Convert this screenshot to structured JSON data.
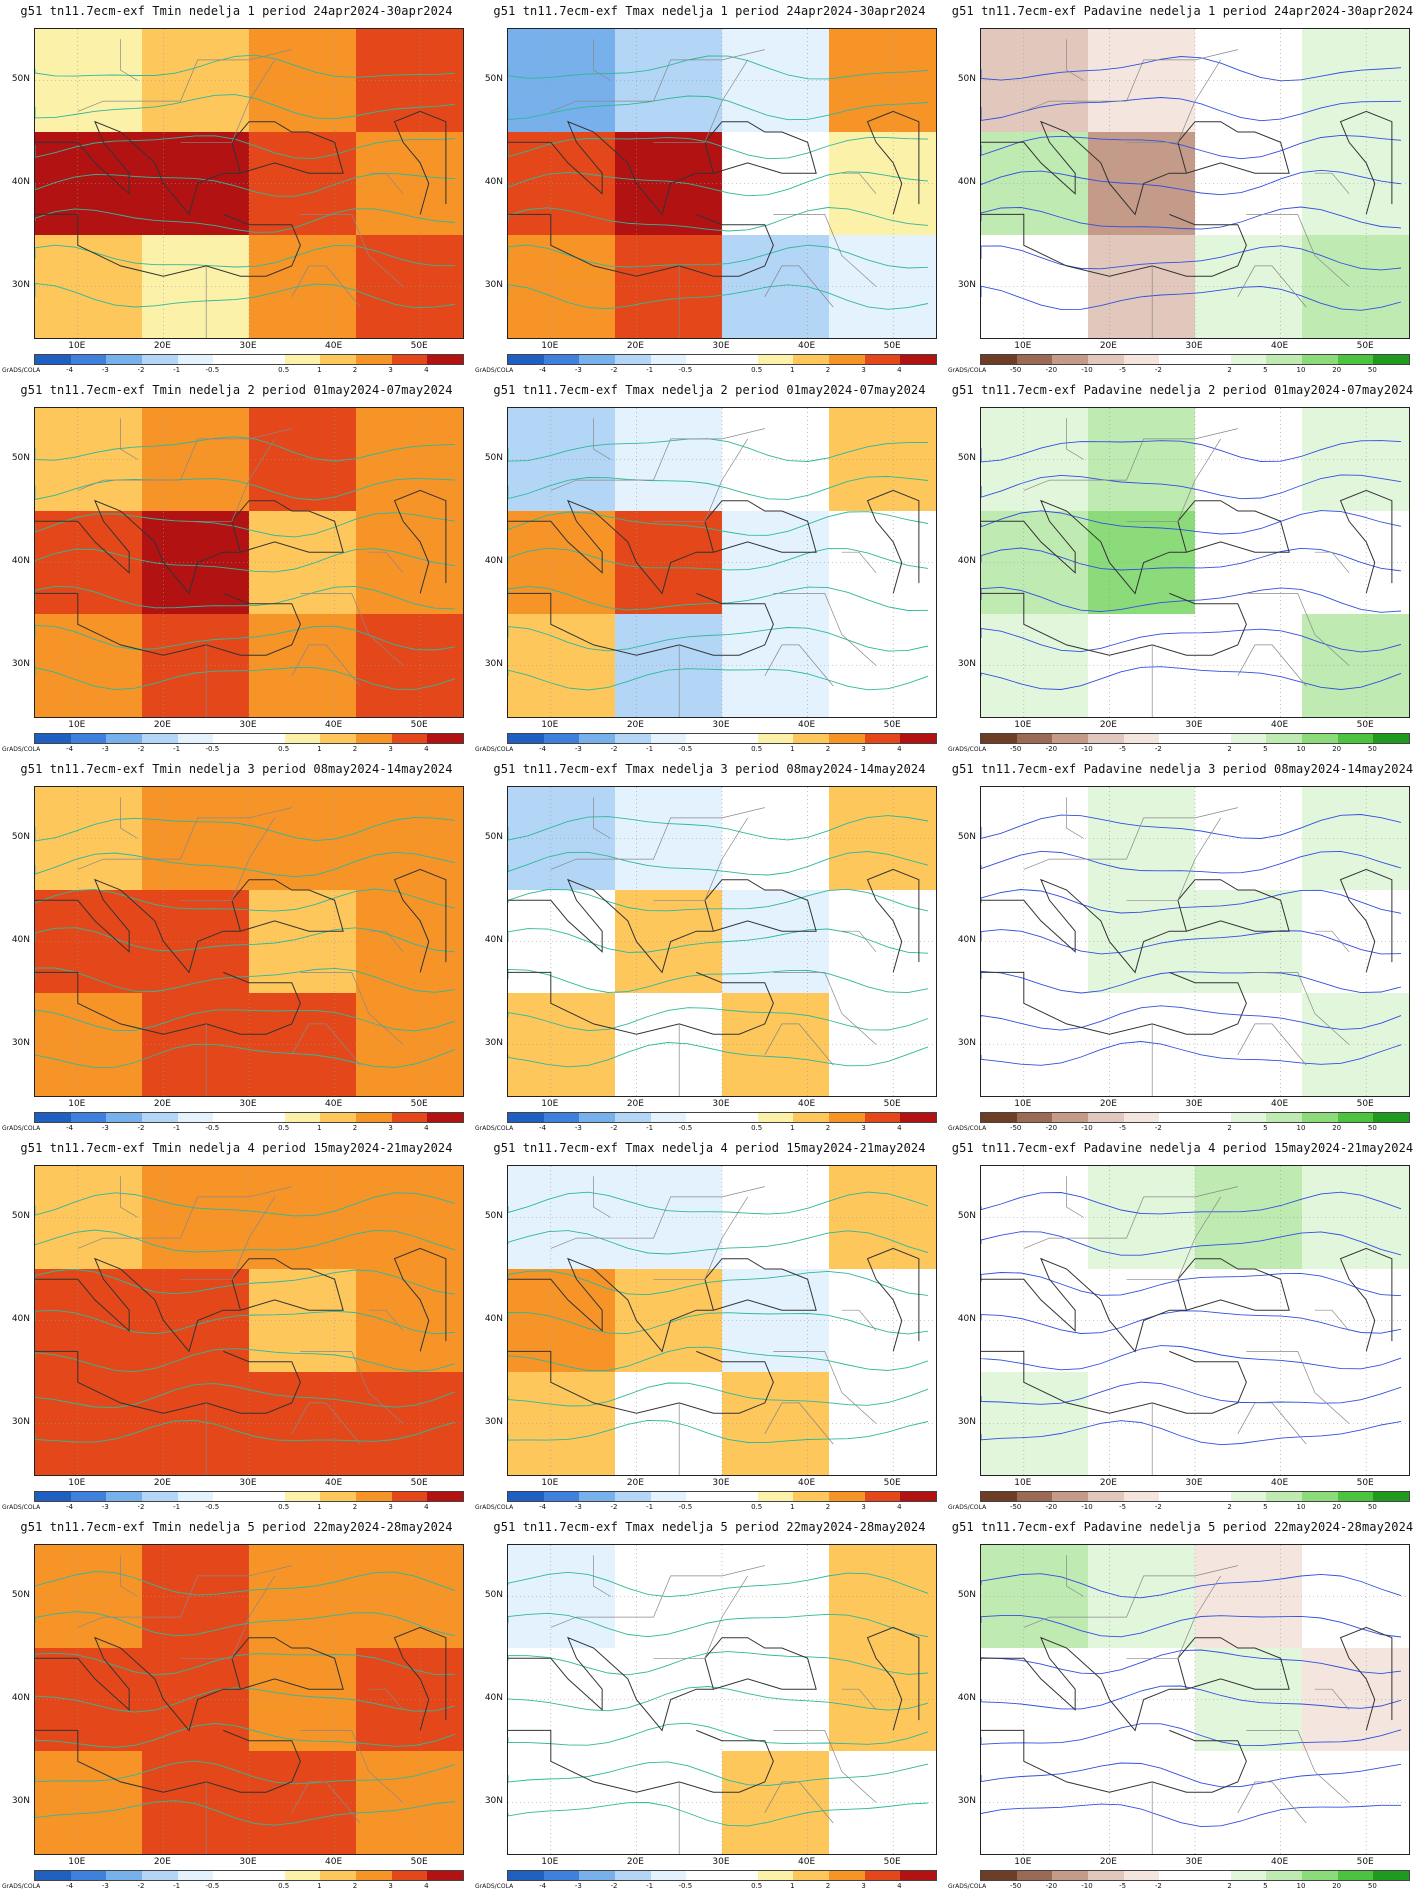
{
  "grads_label": "GrADS/COLA",
  "axis": {
    "y_ticks": [
      "50N",
      "40N",
      "30N"
    ],
    "x_ticks": [
      "10E",
      "20E",
      "30E",
      "40E",
      "50E"
    ]
  },
  "colorbars": {
    "temperature": {
      "colors": [
        "#1f5fbf",
        "#3f80dc",
        "#78b0ec",
        "#b3d6f6",
        "#e4f2fd",
        "#ffffff",
        "#ffffff",
        "#fcf1a8",
        "#fdc75c",
        "#f79428",
        "#e4481a",
        "#b31212"
      ],
      "ticks": [
        "-4",
        "-3",
        "-2",
        "-1",
        "-0.5",
        "0.5",
        "1",
        "2",
        "3",
        "4"
      ]
    },
    "precipitation": {
      "colors": [
        "#6e3d26",
        "#9a6a55",
        "#c49a88",
        "#e2c8bc",
        "#f4e6de",
        "#ffffff",
        "#ffffff",
        "#e2f6dc",
        "#bfeab2",
        "#8cdb7a",
        "#4cc33e",
        "#1f9a1f"
      ],
      "ticks": [
        "-50",
        "-20",
        "-10",
        "-5",
        "-2",
        "2",
        "5",
        "10",
        "20",
        "50"
      ]
    }
  },
  "panels": [
    {
      "title": "g51 tn11.7ecm-exf Tmin nedelja 1 period 24apr2024-30apr2024",
      "variable": "Tmin",
      "scheme": "temperature",
      "anomaly_levels": [
        0.5,
        1,
        2,
        3,
        4,
        4,
        3,
        2,
        1,
        0.5,
        2,
        3
      ]
    },
    {
      "title": "g51 tn11.7ecm-exf Tmax nedelja 1 period 24apr2024-30apr2024",
      "variable": "Tmax",
      "scheme": "temperature",
      "anomaly_levels": [
        -3,
        -2,
        -1,
        2,
        3,
        4,
        -0.5,
        0.5,
        2,
        3,
        -2,
        -1
      ]
    },
    {
      "title": "g51 tn11.7ecm-exf Padavine nedelja 1 period 24apr2024-30apr2024",
      "variable": "Padavine",
      "scheme": "precipitation",
      "anomaly_levels": [
        -10,
        -5,
        0,
        2,
        5,
        -20,
        0,
        2,
        0,
        -10,
        2,
        5
      ]
    },
    {
      "title": "g51 tn11.7ecm-exf Tmin nedelja 2 period 01may2024-07may2024",
      "variable": "Tmin",
      "scheme": "temperature",
      "anomaly_levels": [
        1,
        2,
        3,
        2,
        3,
        4,
        1,
        2,
        2,
        3,
        2,
        3
      ]
    },
    {
      "title": "g51 tn11.7ecm-exf Tmax nedelja 2 period 01may2024-07may2024",
      "variable": "Tmax",
      "scheme": "temperature",
      "anomaly_levels": [
        -2,
        -1,
        -0.5,
        1,
        2,
        3,
        -1,
        0,
        1,
        -2,
        -1,
        0
      ]
    },
    {
      "title": "g51 tn11.7ecm-exf Padavine nedelja 2 period 01may2024-07may2024",
      "variable": "Padavine",
      "scheme": "precipitation",
      "anomaly_levels": [
        2,
        5,
        0,
        2,
        5,
        10,
        0,
        0,
        2,
        0,
        0,
        5
      ]
    },
    {
      "title": "g51 tn11.7ecm-exf Tmin nedelja 3 period 08may2024-14may2024",
      "variable": "Tmin",
      "scheme": "temperature",
      "anomaly_levels": [
        1,
        2,
        2,
        2,
        3,
        3,
        1,
        2,
        2,
        3,
        3,
        2
      ]
    },
    {
      "title": "g51 tn11.7ecm-exf Tmax nedelja 3 period 08may2024-14may2024",
      "variable": "Tmax",
      "scheme": "temperature",
      "anomaly_levels": [
        -2,
        -1,
        0,
        1,
        0,
        1,
        -1,
        0,
        1,
        0,
        1,
        0
      ]
    },
    {
      "title": "g51 tn11.7ecm-exf Padavine nedelja 3 period 08may2024-14may2024",
      "variable": "Padavine",
      "scheme": "precipitation",
      "anomaly_levels": [
        0,
        2,
        0,
        2,
        0,
        2,
        2,
        -2,
        0,
        0,
        0,
        2
      ]
    },
    {
      "title": "g51 tn11.7ecm-exf Tmin nedelja 4 period 15may2024-21may2024",
      "variable": "Tmin",
      "scheme": "temperature",
      "anomaly_levels": [
        1,
        2,
        2,
        2,
        3,
        3,
        1,
        2,
        3,
        3,
        3,
        3
      ]
    },
    {
      "title": "g51 tn11.7ecm-exf Tmax nedelja 4 period 15may2024-21may2024",
      "variable": "Tmax",
      "scheme": "temperature",
      "anomaly_levels": [
        -1,
        -1,
        0,
        1,
        2,
        1,
        -1,
        0,
        1,
        -0.5,
        1,
        0
      ]
    },
    {
      "title": "g51 tn11.7ecm-exf Padavine nedelja 4 period 15may2024-21may2024",
      "variable": "Padavine",
      "scheme": "precipitation",
      "anomaly_levels": [
        0,
        2,
        5,
        2,
        0,
        -2,
        -2,
        0,
        2,
        0,
        0,
        0
      ]
    },
    {
      "title": "g51 tn11.7ecm-exf Tmin nedelja 5 period 22may2024-28may2024",
      "variable": "Tmin",
      "scheme": "temperature",
      "anomaly_levels": [
        2,
        3,
        2,
        2,
        3,
        3,
        2,
        3,
        2,
        3,
        3,
        2
      ]
    },
    {
      "title": "g51 tn11.7ecm-exf Tmax nedelja 5 period 22may2024-28may2024",
      "variable": "Tmax",
      "scheme": "temperature",
      "anomaly_levels": [
        -1,
        0,
        0,
        1,
        0,
        0,
        0,
        1,
        0,
        0,
        1,
        0
      ]
    },
    {
      "title": "g51 tn11.7ecm-exf Padavine nedelja 5 period 22may2024-28may2024",
      "variable": "Padavine",
      "scheme": "precipitation",
      "anomaly_levels": [
        5,
        2,
        -5,
        0,
        0,
        0,
        2,
        -5,
        0,
        0,
        0,
        0
      ]
    }
  ]
}
